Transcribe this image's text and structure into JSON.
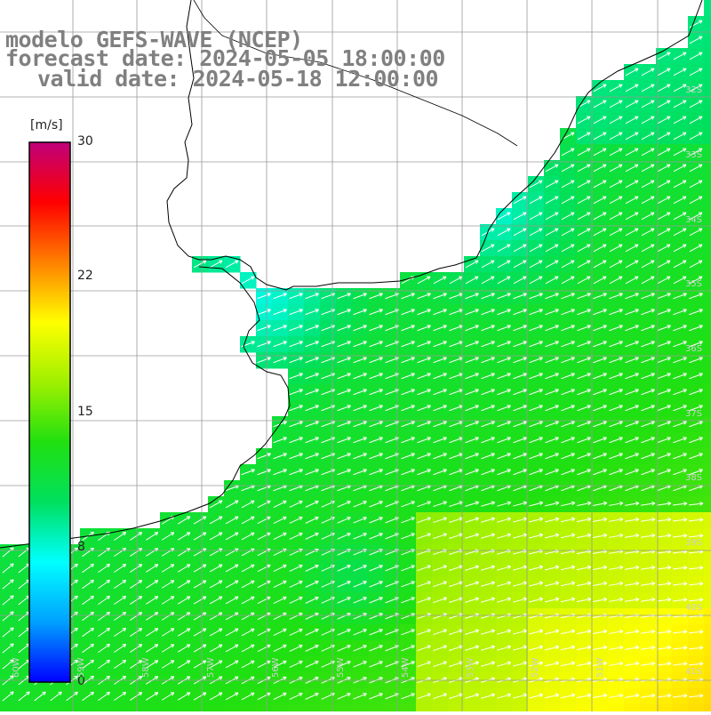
{
  "title": {
    "line1": "modelo GEFS-WAVE (NCEP)",
    "line2": "forecast date: 2024-05-05 18:00:00",
    "line3": "valid date: 2024-05-18 12:00:00"
  },
  "colorbar": {
    "unit": "[m/s]",
    "ticks": [
      "30",
      "22",
      "15",
      "8",
      "0"
    ],
    "stops": [
      "#0000ff",
      "#00a0ff",
      "#00ffff",
      "#00e060",
      "#20e010",
      "#a0f000",
      "#ffff00",
      "#ff8000",
      "#ff0000",
      "#c0007a"
    ]
  },
  "map": {
    "lat_labels": [
      "32S",
      "33S",
      "34S",
      "35S",
      "36S",
      "37S",
      "38S",
      "39S",
      "40S",
      "41S"
    ],
    "lon_labels": [
      "60W",
      "59W",
      "58W",
      "57W",
      "56W",
      "55W",
      "54W",
      "53W",
      "52W",
      "51W"
    ],
    "arrow_color": "#ffffff",
    "grid_color": "#9a9a9a",
    "coast_color": "#000000"
  }
}
